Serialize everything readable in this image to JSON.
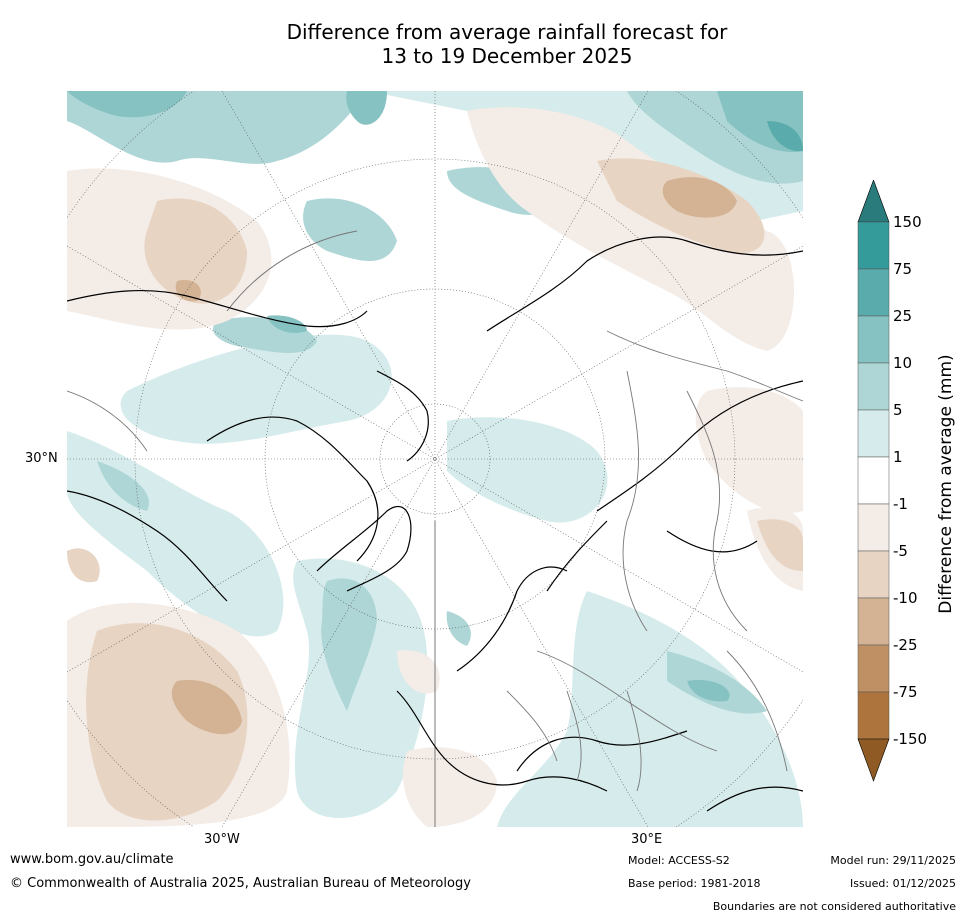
{
  "title": {
    "line1": "Difference from average rainfall forecast for",
    "line2": "13 to 19 December 2025"
  },
  "axes": {
    "lat_label": "30°N",
    "lon_label_left": "30°W",
    "lon_label_right": "30°E"
  },
  "colorbar": {
    "title": "Difference from average (mm)",
    "levels": [
      "150",
      "75",
      "25",
      "10",
      "5",
      "1",
      "-1",
      "-5",
      "-10",
      "-25",
      "-75",
      "-150"
    ],
    "colors": [
      "#2a7b7b",
      "#349a9a",
      "#5aabab",
      "#86c2c2",
      "#aed6d6",
      "#d6ebeb",
      "#ffffff",
      "#f4ece7",
      "#e7d4c3",
      "#d4b394",
      "#be9064",
      "#ad743d",
      "#8f5a24"
    ]
  },
  "footer": {
    "website": "www.bom.gov.au/climate",
    "copyright": "© Commonwealth of Australia 2025, Australian Bureau of Meteorology",
    "model": "Model: ACCESS-S2",
    "base_period": "Base period: 1981-2018",
    "model_run": "Model run: 29/11/2025",
    "issued": "Issued: 01/12/2025",
    "disclaimer": "Boundaries are not considered authoritative"
  }
}
